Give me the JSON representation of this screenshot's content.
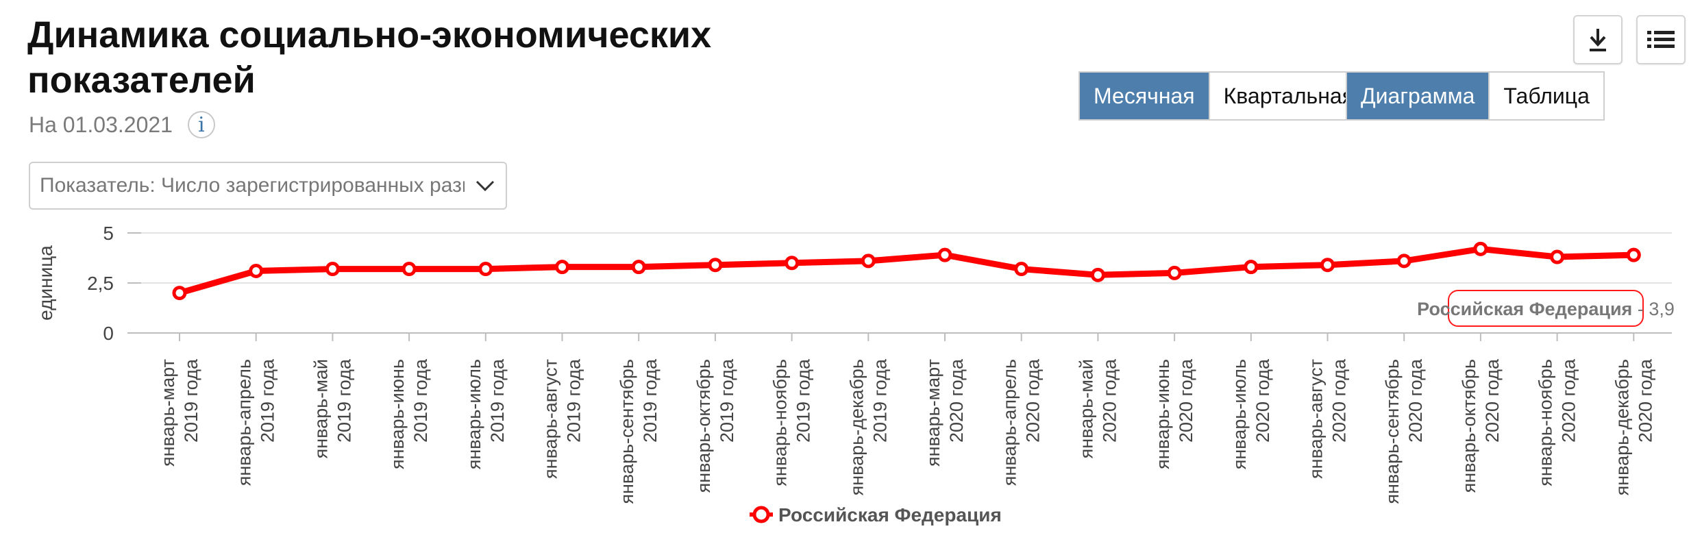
{
  "header": {
    "title": "Динамика социально-экономических показателей",
    "date": "На 01.03.2021",
    "info_label": "i"
  },
  "indicator_select": {
    "value": "Показатель: Число зарегистрированных разв"
  },
  "period_toggle": {
    "items": [
      {
        "label": "Месячная",
        "active": true
      },
      {
        "label": "Квартальная",
        "active": false
      }
    ]
  },
  "view_toggle": {
    "items": [
      {
        "label": "Диаграмма",
        "active": true
      },
      {
        "label": "Таблица",
        "active": false
      }
    ]
  },
  "toolbar": {
    "download_icon": "download-icon",
    "menu_icon": "list-icon"
  },
  "colors": {
    "series": "#ff0000",
    "accent": "#4e7fac",
    "tooltip_text": "#777777"
  },
  "chart_data": {
    "type": "line",
    "ylabel": "единица",
    "ylim": [
      0,
      5
    ],
    "yticks": [
      {
        "value": 0,
        "label": "0"
      },
      {
        "value": 2.5,
        "label": "2,5"
      },
      {
        "value": 5,
        "label": "5"
      }
    ],
    "grid": true,
    "legend": "bottom-center",
    "categories": [
      [
        "январь-март",
        "2019 года"
      ],
      [
        "январь-апрель",
        "2019 года"
      ],
      [
        "январь-май",
        "2019 года"
      ],
      [
        "январь-июнь",
        "2019 года"
      ],
      [
        "январь-июль",
        "2019 года"
      ],
      [
        "январь-август",
        "2019 года"
      ],
      [
        "январь-сентябрь",
        "2019 года"
      ],
      [
        "январь-октябрь",
        "2019 года"
      ],
      [
        "январь-ноябрь",
        "2019 года"
      ],
      [
        "январь-декабрь",
        "2019 года"
      ],
      [
        "январь-март",
        "2020 года"
      ],
      [
        "январь-апрель",
        "2020 года"
      ],
      [
        "январь-май",
        "2020 года"
      ],
      [
        "январь-июнь",
        "2020 года"
      ],
      [
        "январь-июль",
        "2020 года"
      ],
      [
        "январь-август",
        "2020 года"
      ],
      [
        "январь-сентябрь",
        "2020 года"
      ],
      [
        "январь-октябрь",
        "2020 года"
      ],
      [
        "январь-ноябрь",
        "2020 года"
      ],
      [
        "январь-декабрь",
        "2020 года"
      ]
    ],
    "series": [
      {
        "name": "Российская Федерация",
        "values": [
          2.0,
          3.1,
          3.2,
          3.2,
          3.2,
          3.3,
          3.3,
          3.4,
          3.5,
          3.6,
          3.9,
          3.2,
          2.9,
          3.0,
          3.3,
          3.4,
          3.6,
          4.2,
          3.8,
          3.9
        ]
      }
    ],
    "tooltip": {
      "series": "Российская Федерация",
      "separator": " - ",
      "value": "3,9"
    }
  }
}
